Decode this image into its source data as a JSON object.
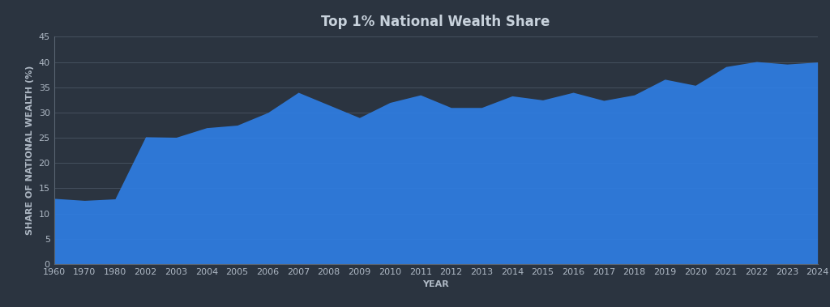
{
  "chart_data": {
    "type": "area",
    "title": "Top 1% National Wealth Share",
    "x_label": "YEAR",
    "y_label": "SHARE OF NATIONAL WEALTH (%)",
    "categories": [
      "1960",
      "1970",
      "1980",
      "2002",
      "2003",
      "2004",
      "2005",
      "2006",
      "2007",
      "2008",
      "2009",
      "2010",
      "2011",
      "2012",
      "2013",
      "2014",
      "2015",
      "2016",
      "2017",
      "2018",
      "2019",
      "2020",
      "2021",
      "2022",
      "2023",
      "2024"
    ],
    "values": [
      13,
      12.6,
      12.9,
      25.2,
      25.1,
      27,
      27.5,
      30,
      34,
      31.5,
      29,
      32,
      33.5,
      31,
      31,
      33.3,
      32.5,
      34,
      32.4,
      33.5,
      36.6,
      35.4,
      39.1,
      40.1,
      39.6,
      40
    ],
    "color": "#2f7fe6",
    "ylim": [
      0,
      45
    ],
    "yticks": [
      0,
      5,
      10,
      15,
      20,
      25,
      30,
      35,
      40,
      45
    ],
    "grid": true
  }
}
